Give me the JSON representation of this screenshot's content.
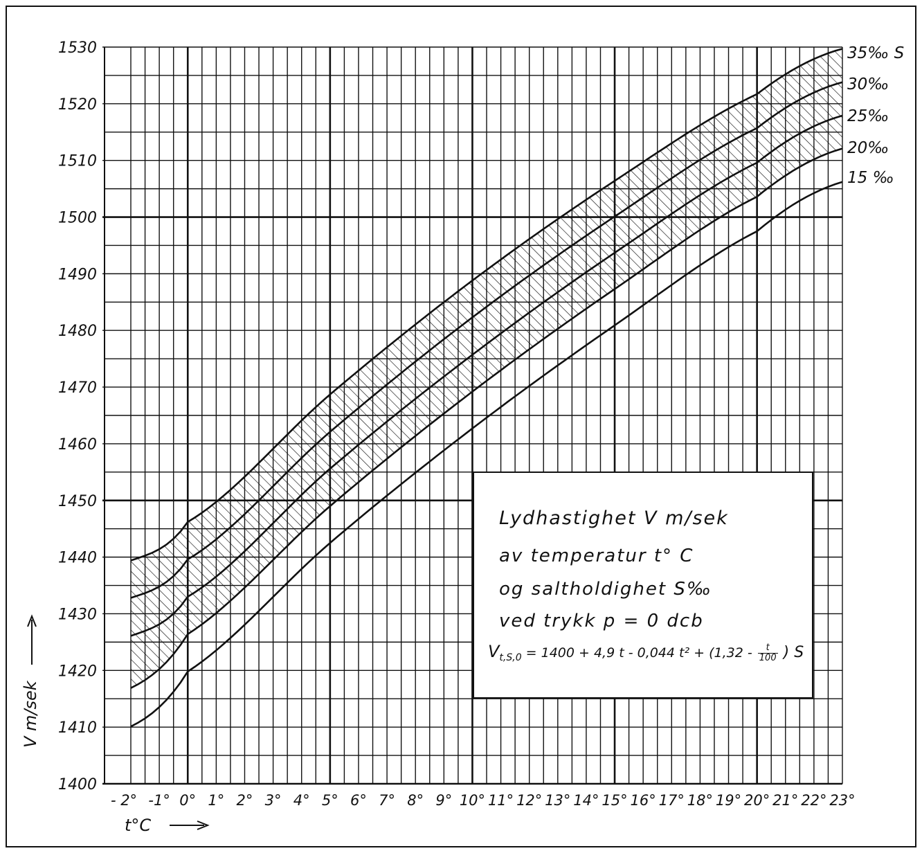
{
  "chart_data": {
    "type": "line",
    "x_ticks": [
      "- 2°",
      "-1°",
      "0°",
      "1°",
      "2°",
      "3°",
      "4°",
      "5°",
      "6°",
      "7°",
      "8°",
      "9°",
      "10°",
      "11°",
      "12°",
      "13°",
      "14°",
      "15°",
      "16°",
      "17°",
      "18°",
      "19°",
      "20°",
      "21°",
      "22°",
      "23°"
    ],
    "y_ticks": [
      "1400",
      "1410",
      "1420",
      "1430",
      "1440",
      "1450",
      "1460",
      "1470",
      "1480",
      "1490",
      "1500",
      "1510",
      "1520",
      "1530"
    ],
    "xlabel": "t°C",
    "ylabel": "V m/sek",
    "xlim": [
      -2,
      23
    ],
    "ylim": [
      1400,
      1530
    ],
    "grid": true,
    "series": [
      {
        "name": "35‰ S",
        "label": "35‰ S",
        "x": [
          -2,
          0,
          5,
          10,
          15,
          20,
          23
        ],
        "y": [
          1439.4,
          1446.2,
          1468.7,
          1488.8,
          1506.4,
          1521.7,
          1529.7
        ]
      },
      {
        "name": "30‰",
        "label": "30‰",
        "x": [
          -2,
          0,
          5,
          10,
          15,
          20,
          23
        ],
        "y": [
          1432.8,
          1439.6,
          1462.1,
          1482.3,
          1500.1,
          1515.7,
          1523.8
        ]
      },
      {
        "name": "25‰",
        "label": "25‰",
        "x": [
          -2,
          0,
          5,
          10,
          15,
          20,
          23
        ],
        "y": [
          1426.1,
          1433.0,
          1455.6,
          1475.7,
          1493.7,
          1509.6,
          1517.9
        ]
      },
      {
        "name": "20‰",
        "label": "20‰",
        "x": [
          -2,
          0,
          5,
          10,
          15,
          20,
          23
        ],
        "y": [
          1416.9,
          1426.4,
          1449.0,
          1469.2,
          1487.3,
          1503.6,
          1512.1
        ]
      },
      {
        "name": "15 ‰",
        "label": "15 ‰",
        "x": [
          -2,
          0,
          5,
          10,
          15,
          20,
          23
        ],
        "y": [
          1410.1,
          1419.8,
          1442.5,
          1462.7,
          1480.9,
          1497.5,
          1506.2
        ]
      }
    ],
    "hatched_band": {
      "between": [
        "20‰",
        "35‰ S"
      ],
      "pattern": "diagonal hatch"
    }
  },
  "info_box": {
    "title": "Lydhastighet  V  m/sek",
    "line1": "av  temperatur  t° C",
    "line2": "og  saltholdighet  S‰",
    "line3": "ved  trykk    p = 0 dcb",
    "formula_v": "V",
    "formula_sub": "t,S,0",
    "formula_main": "= 1400 + 4,9 t - 0,044 t² + (1,32 -",
    "formula_frac_num": "t",
    "formula_frac_den": "100",
    "formula_end": ") S"
  },
  "colors": {
    "ink": "#111111",
    "paper": "#ffffff"
  }
}
